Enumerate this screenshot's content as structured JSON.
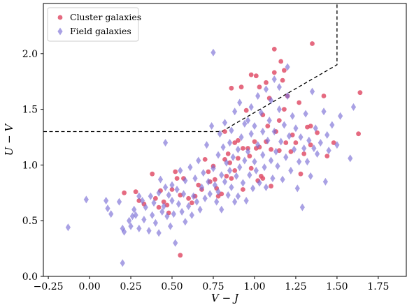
{
  "chart_data": {
    "type": "scatter",
    "xlabel": "V − J",
    "ylabel": "U − V",
    "xlim": [
      -0.28,
      1.92
    ],
    "ylim": [
      0.0,
      2.45
    ],
    "xticks": [
      -0.25,
      0.0,
      0.25,
      0.5,
      0.75,
      1.0,
      1.25,
      1.5,
      1.75
    ],
    "xtick_labels": [
      "−0.25",
      "0.00",
      "0.25",
      "0.50",
      "0.75",
      "1.00",
      "1.25",
      "1.50",
      "1.75"
    ],
    "yticks": [
      0.0,
      0.5,
      1.0,
      1.5,
      2.0
    ],
    "ytick_labels": [
      "0.0",
      "0.5",
      "1.0",
      "1.5",
      "2.0"
    ],
    "grid": false,
    "legend_position": "top-left",
    "selection_boundary": {
      "style": "dashed",
      "color": "#000000",
      "points": [
        [
          -0.28,
          1.3
        ],
        [
          0.8,
          1.3
        ],
        [
          1.5,
          1.9
        ],
        [
          1.5,
          2.45
        ]
      ]
    },
    "series": [
      {
        "name": "Cluster galaxies",
        "marker": "circle",
        "color": "#e0506a",
        "points": [
          [
            0.21,
            0.75
          ],
          [
            0.28,
            0.76
          ],
          [
            0.3,
            0.68
          ],
          [
            0.33,
            0.65
          ],
          [
            0.38,
            0.92
          ],
          [
            0.4,
            0.7
          ],
          [
            0.42,
            0.62
          ],
          [
            0.43,
            0.77
          ],
          [
            0.45,
            0.67
          ],
          [
            0.47,
            0.64
          ],
          [
            0.48,
            0.57
          ],
          [
            0.5,
            0.78
          ],
          [
            0.52,
            0.94
          ],
          [
            0.53,
            0.88
          ],
          [
            0.55,
            0.73
          ],
          [
            0.55,
            0.19
          ],
          [
            0.57,
            0.88
          ],
          [
            0.6,
            0.7
          ],
          [
            0.62,
            0.66
          ],
          [
            0.64,
            0.72
          ],
          [
            0.66,
            0.82
          ],
          [
            0.68,
            0.78
          ],
          [
            0.7,
            1.05
          ],
          [
            0.72,
            0.94
          ],
          [
            0.73,
            0.85
          ],
          [
            0.75,
            0.99
          ],
          [
            0.76,
            0.87
          ],
          [
            0.77,
            0.79
          ],
          [
            0.78,
            0.72
          ],
          [
            0.8,
            0.74
          ],
          [
            0.82,
            1.3
          ],
          [
            0.82,
            1.05
          ],
          [
            0.83,
            0.9
          ],
          [
            0.84,
            1.1
          ],
          [
            0.85,
            1.02
          ],
          [
            0.86,
            1.69
          ],
          [
            0.86,
            0.88
          ],
          [
            0.88,
            1.2
          ],
          [
            0.88,
            0.95
          ],
          [
            0.9,
            1.22
          ],
          [
            0.9,
            1.06
          ],
          [
            0.92,
            1.7
          ],
          [
            0.93,
            1.15
          ],
          [
            0.93,
            0.78
          ],
          [
            0.95,
            1.49
          ],
          [
            0.96,
            1.15
          ],
          [
            0.97,
            1.08
          ],
          [
            0.98,
            1.81
          ],
          [
            0.98,
            0.97
          ],
          [
            1.0,
            1.21
          ],
          [
            1.01,
            1.8
          ],
          [
            1.01,
            1.15
          ],
          [
            1.02,
            0.86
          ],
          [
            1.03,
            1.7
          ],
          [
            1.03,
            1.16
          ],
          [
            1.04,
            0.9
          ],
          [
            1.05,
            1.45
          ],
          [
            1.05,
            0.88
          ],
          [
            1.07,
            1.74
          ],
          [
            1.07,
            1.21
          ],
          [
            1.08,
            1.35
          ],
          [
            1.09,
            1.6
          ],
          [
            1.1,
            1.14
          ],
          [
            1.1,
            0.81
          ],
          [
            1.12,
            2.04
          ],
          [
            1.12,
            1.83
          ],
          [
            1.13,
            1.3
          ],
          [
            1.15,
            1.4
          ],
          [
            1.15,
            1.13
          ],
          [
            1.16,
            1.93
          ],
          [
            1.17,
            1.76
          ],
          [
            1.18,
            1.85
          ],
          [
            1.18,
            1.5
          ],
          [
            1.19,
            1.2
          ],
          [
            1.2,
            1.62
          ],
          [
            1.22,
            1.12
          ],
          [
            1.23,
            1.27
          ],
          [
            1.25,
            1.2
          ],
          [
            1.27,
            1.56
          ],
          [
            1.28,
            0.92
          ],
          [
            1.3,
            1.1
          ],
          [
            1.32,
            1.34
          ],
          [
            1.34,
            1.35
          ],
          [
            1.34,
            1.18
          ],
          [
            1.35,
            2.09
          ],
          [
            1.38,
            1.29
          ],
          [
            1.42,
            1.62
          ],
          [
            1.44,
            1.08
          ],
          [
            1.48,
            1.2
          ],
          [
            1.63,
            1.28
          ],
          [
            1.64,
            1.65
          ]
        ]
      },
      {
        "name": "Field galaxies",
        "marker": "diamond",
        "color": "#7b6fd6",
        "points": [
          [
            -0.13,
            0.44
          ],
          [
            -0.02,
            0.69
          ],
          [
            0.1,
            0.68
          ],
          [
            0.11,
            0.61
          ],
          [
            0.13,
            0.56
          ],
          [
            0.18,
            0.67
          ],
          [
            0.2,
            0.43
          ],
          [
            0.2,
            0.12
          ],
          [
            0.21,
            0.4
          ],
          [
            0.24,
            0.5
          ],
          [
            0.25,
            0.45
          ],
          [
            0.26,
            0.54
          ],
          [
            0.27,
            0.6
          ],
          [
            0.28,
            0.55
          ],
          [
            0.3,
            0.72
          ],
          [
            0.3,
            0.43
          ],
          [
            0.32,
            0.68
          ],
          [
            0.33,
            0.51
          ],
          [
            0.34,
            0.62
          ],
          [
            0.36,
            0.41
          ],
          [
            0.37,
            0.72
          ],
          [
            0.38,
            0.55
          ],
          [
            0.39,
            0.66
          ],
          [
            0.4,
            0.48
          ],
          [
            0.42,
            0.75
          ],
          [
            0.42,
            0.39
          ],
          [
            0.43,
            0.87
          ],
          [
            0.44,
            0.58
          ],
          [
            0.45,
            0.63
          ],
          [
            0.46,
            0.8
          ],
          [
            0.46,
            1.2
          ],
          [
            0.47,
            0.54
          ],
          [
            0.48,
            0.73
          ],
          [
            0.49,
            0.45
          ],
          [
            0.5,
            0.82
          ],
          [
            0.5,
            0.68
          ],
          [
            0.51,
            0.56
          ],
          [
            0.52,
            0.3
          ],
          [
            0.53,
            0.78
          ],
          [
            0.54,
            0.65
          ],
          [
            0.55,
            0.95
          ],
          [
            0.56,
            0.58
          ],
          [
            0.57,
            0.74
          ],
          [
            0.58,
            0.49
          ],
          [
            0.58,
            0.86
          ],
          [
            0.6,
            0.63
          ],
          [
            0.61,
            0.98
          ],
          [
            0.62,
            0.55
          ],
          [
            0.63,
            0.72
          ],
          [
            0.64,
            0.88
          ],
          [
            0.65,
            0.67
          ],
          [
            0.66,
            1.04
          ],
          [
            0.67,
            0.6
          ],
          [
            0.68,
            0.8
          ],
          [
            0.69,
            0.93
          ],
          [
            0.7,
            0.7
          ],
          [
            0.71,
            1.18
          ],
          [
            0.72,
            0.85
          ],
          [
            0.73,
            0.74
          ],
          [
            0.74,
            1.35
          ],
          [
            0.75,
            2.01
          ],
          [
            0.75,
            0.97
          ],
          [
            0.76,
            0.82
          ],
          [
            0.77,
            0.67
          ],
          [
            0.78,
            1.09
          ],
          [
            0.78,
            0.76
          ],
          [
            0.79,
            1.28
          ],
          [
            0.8,
            0.91
          ],
          [
            0.8,
            0.6
          ],
          [
            0.81,
            1.16
          ],
          [
            0.82,
            1.38
          ],
          [
            0.82,
            0.85
          ],
          [
            0.83,
            1.02
          ],
          [
            0.84,
            0.73
          ],
          [
            0.85,
            1.2
          ],
          [
            0.85,
            0.95
          ],
          [
            0.86,
            1.31
          ],
          [
            0.86,
            0.8
          ],
          [
            0.87,
            1.07
          ],
          [
            0.88,
            0.67
          ],
          [
            0.88,
            1.48
          ],
          [
            0.89,
            0.9
          ],
          [
            0.9,
            1.14
          ],
          [
            0.9,
            0.72
          ],
          [
            0.91,
            1.56
          ],
          [
            0.91,
            0.98
          ],
          [
            0.92,
            1.25
          ],
          [
            0.93,
            0.84
          ],
          [
            0.94,
            1.37
          ],
          [
            0.94,
            1.04
          ],
          [
            0.95,
            0.68
          ],
          [
            0.96,
            1.4
          ],
          [
            0.96,
            1.12
          ],
          [
            0.97,
            0.91
          ],
          [
            0.98,
            1.28
          ],
          [
            0.98,
            1.52
          ],
          [
            0.99,
            0.79
          ],
          [
            1.0,
            1.03
          ],
          [
            1.0,
            1.35
          ],
          [
            1.01,
            0.95
          ],
          [
            1.02,
            1.62
          ],
          [
            1.02,
            1.18
          ],
          [
            1.03,
            0.84
          ],
          [
            1.04,
            1.47
          ],
          [
            1.05,
            1.09
          ],
          [
            1.05,
            1.3
          ],
          [
            1.06,
            0.98
          ],
          [
            1.07,
            1.68
          ],
          [
            1.07,
            0.8
          ],
          [
            1.08,
            1.22
          ],
          [
            1.09,
            1.4
          ],
          [
            1.1,
            1.04
          ],
          [
            1.1,
            1.58
          ],
          [
            1.11,
            0.88
          ],
          [
            1.12,
            1.77
          ],
          [
            1.12,
            1.3
          ],
          [
            1.13,
            1.12
          ],
          [
            1.14,
            0.99
          ],
          [
            1.15,
            1.5
          ],
          [
            1.15,
            1.7
          ],
          [
            1.16,
            1.21
          ],
          [
            1.17,
            0.87
          ],
          [
            1.18,
            1.36
          ],
          [
            1.19,
            1.07
          ],
          [
            1.2,
            1.62
          ],
          [
            1.2,
            1.88
          ],
          [
            1.21,
            1.26
          ],
          [
            1.22,
            0.95
          ],
          [
            1.23,
            1.44
          ],
          [
            1.24,
            1.14
          ],
          [
            1.25,
            1.33
          ],
          [
            1.26,
            0.79
          ],
          [
            1.27,
            1.03
          ],
          [
            1.28,
            1.25
          ],
          [
            1.29,
            0.62
          ],
          [
            1.3,
            1.15
          ],
          [
            1.31,
            1.46
          ],
          [
            1.32,
            1.03
          ],
          [
            1.33,
            1.22
          ],
          [
            1.34,
            0.9
          ],
          [
            1.35,
            1.66
          ],
          [
            1.36,
            1.15
          ],
          [
            1.37,
            1.33
          ],
          [
            1.38,
            1.1
          ],
          [
            1.4,
            1.2
          ],
          [
            1.42,
            1.48
          ],
          [
            1.43,
            0.85
          ],
          [
            1.44,
            1.27
          ],
          [
            1.45,
            1.13
          ],
          [
            1.47,
            1.36
          ],
          [
            1.5,
            1.18
          ],
          [
            1.52,
            1.44
          ],
          [
            1.58,
            1.06
          ],
          [
            1.6,
            1.52
          ]
        ]
      }
    ]
  }
}
